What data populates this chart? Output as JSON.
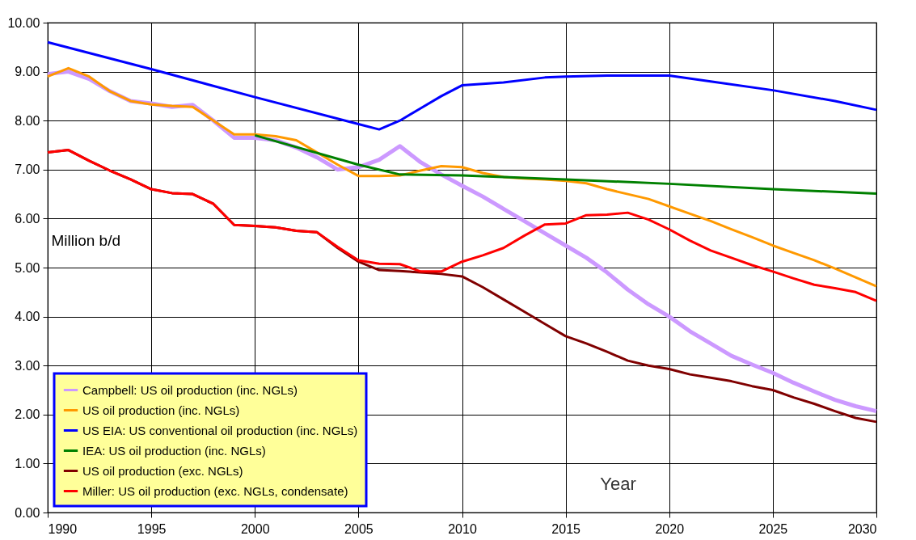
{
  "chart_data": {
    "type": "line",
    "xlabel": "Year",
    "ylabel": "Million b/d",
    "xlim": [
      1990,
      2030
    ],
    "xticks": [
      1990,
      1995,
      2000,
      2005,
      2010,
      2015,
      2020,
      2025,
      2030
    ],
    "ylim": [
      0,
      10
    ],
    "yticks": [
      {
        "value": 0,
        "label": "0.00"
      },
      {
        "value": 1,
        "label": "1.00"
      },
      {
        "value": 2,
        "label": "2.00"
      },
      {
        "value": 3,
        "label": "3.00"
      },
      {
        "value": 4,
        "label": "4.00"
      },
      {
        "value": 5,
        "label": "5.00"
      },
      {
        "value": 6,
        "label": "6.00"
      },
      {
        "value": 7,
        "label": "7.00"
      },
      {
        "value": 8,
        "label": "8.00"
      },
      {
        "value": 9,
        "label": "9.00"
      },
      {
        "value": 10,
        "label": "10.00"
      }
    ],
    "grid": true,
    "legend": "bottom left",
    "line_style": "solid",
    "series": [
      {
        "name": "Campbell: US oil production (inc. NGLs)",
        "color": "#cc99ff",
        "x": [
          1990,
          1991,
          1992,
          1993,
          1994,
          1995,
          1996,
          1997,
          1998,
          1999,
          2000,
          2001,
          2002,
          2003,
          2004,
          2005,
          2006,
          2007,
          2008,
          2009,
          2010,
          2011,
          2012,
          2013,
          2014,
          2015,
          2016,
          2017,
          2018,
          2019,
          2020,
          2021,
          2022,
          2023,
          2024,
          2025,
          2026,
          2027,
          2028,
          2029,
          2030
        ],
        "values": [
          8.95,
          9.0,
          8.85,
          8.6,
          8.4,
          8.35,
          8.28,
          8.32,
          8.0,
          7.65,
          7.65,
          7.6,
          7.45,
          7.25,
          7.0,
          7.05,
          7.2,
          7.48,
          7.15,
          6.9,
          6.67,
          6.45,
          6.2,
          5.95,
          5.7,
          5.45,
          5.2,
          4.9,
          4.55,
          4.25,
          4.0,
          3.7,
          3.45,
          3.2,
          3.02,
          2.85,
          2.65,
          2.47,
          2.3,
          2.17,
          2.07
        ]
      },
      {
        "name": "US oil production (inc. NGLs)",
        "color": "#ff9900",
        "x": [
          1990,
          1991,
          1992,
          1993,
          1994,
          1995,
          1996,
          1997,
          1998,
          1999,
          2000,
          2001,
          2002,
          2003,
          2004,
          2005,
          2006,
          2007,
          2008,
          2009,
          2010,
          2011,
          2012,
          2013,
          2014,
          2015,
          2016,
          2017,
          2018,
          2019,
          2020,
          2021,
          2022,
          2023,
          2024,
          2025,
          2026,
          2027,
          2028,
          2029,
          2030
        ],
        "values": [
          8.9,
          9.07,
          8.9,
          8.6,
          8.4,
          8.33,
          8.3,
          8.28,
          8.0,
          7.72,
          7.72,
          7.68,
          7.6,
          7.35,
          7.1,
          6.87,
          6.87,
          6.88,
          6.98,
          7.07,
          7.05,
          6.93,
          6.85,
          6.82,
          6.8,
          6.77,
          6.72,
          6.6,
          6.5,
          6.4,
          6.25,
          6.1,
          5.95,
          5.78,
          5.62,
          5.45,
          5.3,
          5.15,
          4.98,
          4.8,
          4.62
        ]
      },
      {
        "name": "US EIA: US conventional oil production (inc. NGLs)",
        "color": "#0000ff",
        "x": [
          1990,
          1995,
          2000,
          2005,
          2006,
          2007,
          2008,
          2009,
          2010,
          2012,
          2014,
          2015,
          2017,
          2020,
          2022,
          2025,
          2028,
          2030
        ],
        "values": [
          9.6,
          9.05,
          8.48,
          7.93,
          7.82,
          8.0,
          8.25,
          8.5,
          8.72,
          8.78,
          8.88,
          8.9,
          8.92,
          8.92,
          8.8,
          8.62,
          8.4,
          8.22
        ]
      },
      {
        "name": "IEA: US oil production (inc. NGLs)",
        "color": "#008000",
        "x": [
          2000,
          2005,
          2007,
          2010,
          2015,
          2020,
          2025,
          2030
        ],
        "values": [
          7.7,
          7.1,
          6.9,
          6.88,
          6.8,
          6.71,
          6.6,
          6.51
        ]
      },
      {
        "name": "US oil production (exc. NGLs)",
        "color": "#800000",
        "x": [
          1990,
          1991,
          1992,
          1993,
          1994,
          1995,
          1996,
          1997,
          1998,
          1999,
          2000,
          2001,
          2002,
          2003,
          2004,
          2005,
          2006,
          2007,
          2008,
          2009,
          2010,
          2011,
          2012,
          2013,
          2014,
          2015,
          2016,
          2017,
          2018,
          2019,
          2020,
          2021,
          2022,
          2023,
          2024,
          2025,
          2026,
          2027,
          2028,
          2029,
          2030
        ],
        "values": [
          7.35,
          7.4,
          7.18,
          6.98,
          6.8,
          6.6,
          6.52,
          6.5,
          6.3,
          5.87,
          5.85,
          5.82,
          5.75,
          5.72,
          5.4,
          5.12,
          4.95,
          4.93,
          4.9,
          4.87,
          4.82,
          4.6,
          4.35,
          4.1,
          3.85,
          3.6,
          3.45,
          3.28,
          3.1,
          3.0,
          2.93,
          2.82,
          2.75,
          2.68,
          2.58,
          2.5,
          2.35,
          2.22,
          2.07,
          1.93,
          1.85
        ]
      },
      {
        "name": "Miller: US oil production (exc. NGLs, condensate)",
        "color": "#ff0000",
        "x": [
          1990,
          1991,
          1992,
          1993,
          1994,
          1995,
          1996,
          1997,
          1998,
          1999,
          2000,
          2001,
          2002,
          2003,
          2004,
          2005,
          2006,
          2007,
          2008,
          2009,
          2010,
          2011,
          2012,
          2013,
          2014,
          2015,
          2016,
          2017,
          2018,
          2019,
          2020,
          2021,
          2022,
          2023,
          2024,
          2025,
          2026,
          2027,
          2028,
          2029,
          2030
        ],
        "values": [
          7.35,
          7.4,
          7.18,
          6.98,
          6.8,
          6.6,
          6.52,
          6.5,
          6.3,
          5.87,
          5.85,
          5.82,
          5.75,
          5.72,
          5.42,
          5.15,
          5.08,
          5.07,
          4.92,
          4.92,
          5.12,
          5.25,
          5.4,
          5.65,
          5.88,
          5.9,
          6.07,
          6.08,
          6.12,
          5.98,
          5.78,
          5.55,
          5.35,
          5.2,
          5.05,
          4.92,
          4.78,
          4.65,
          4.58,
          4.5,
          4.32
        ]
      }
    ]
  }
}
